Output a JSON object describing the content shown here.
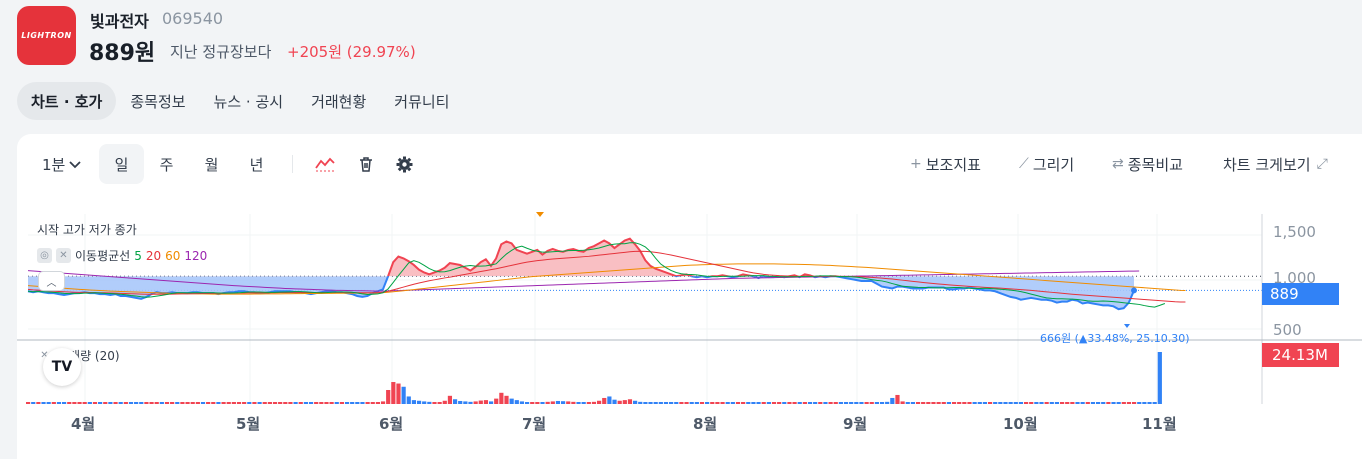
{
  "stock": {
    "logo_text": "LIGHTRON",
    "name": "빛과전자",
    "code": "069540",
    "price": "889원",
    "compare_label": "지난 정규장보다",
    "change": "+205원 (29.97%)"
  },
  "tabs": [
    {
      "label": "차트 · 호가",
      "active": true
    },
    {
      "label": "종목정보"
    },
    {
      "label": "뉴스 · 공시"
    },
    {
      "label": "거래현황"
    },
    {
      "label": "커뮤니티"
    }
  ],
  "toolbar": {
    "interval": "1분",
    "periods": [
      "일",
      "주",
      "월",
      "년"
    ],
    "indicator_label": "보조지표",
    "draw_label": "그리기",
    "compare_label": "종목비교",
    "fullscreen_label": "차트 크게보기"
  },
  "chart_labels": {
    "ohlc_legend": "시작 고가 저가 종가",
    "ma_label": "이동평균선",
    "ma_periods": [
      "5",
      "20",
      "60",
      "120"
    ],
    "volume_label": "거래량 (20)",
    "current_price_tag": "889",
    "volume_tag": "24.13M",
    "low_note": "666원 (▲33.48%, 25.10.30)"
  },
  "colors": {
    "rise": "#f04452",
    "fall": "#3182f6",
    "ma5": "#00a344",
    "ma20": "#e5333b",
    "ma60": "#f08c00",
    "ma120": "#9c27b0"
  },
  "chart_data": {
    "type": "area",
    "y_ticks": [
      "1,500",
      "1,000",
      "500"
    ],
    "x_ticks": [
      "4월",
      "5월",
      "6월",
      "7월",
      "8월",
      "9월",
      "10월",
      "11월"
    ],
    "reference_price": 1040,
    "current_price": 889,
    "price": [
      880,
      870,
      880,
      870,
      860,
      860,
      850,
      840,
      850,
      860,
      860,
      870,
      860,
      860,
      850,
      850,
      840,
      850,
      830,
      830,
      820,
      810,
      800,
      820,
      850,
      870,
      860,
      860,
      870,
      860,
      860,
      860,
      870,
      870,
      860,
      860,
      860,
      850,
      860,
      870,
      870,
      880,
      880,
      870,
      870,
      860,
      860,
      870,
      880,
      880,
      880,
      880,
      870,
      870,
      860,
      850,
      860,
      870,
      880,
      880,
      870,
      870,
      860,
      850,
      830,
      820,
      830,
      860,
      880,
      900,
      1040,
      1190,
      1250,
      1230,
      1200,
      1160,
      1110,
      1080,
      1060,
      1080,
      1100,
      1130,
      1180,
      1170,
      1160,
      1130,
      1100,
      1140,
      1190,
      1220,
      1150,
      1230,
      1380,
      1410,
      1390,
      1320,
      1300,
      1280,
      1300,
      1320,
      1270,
      1310,
      1330,
      1310,
      1300,
      1320,
      1330,
      1310,
      1300,
      1340,
      1360,
      1390,
      1420,
      1390,
      1340,
      1380,
      1420,
      1440,
      1380,
      1310,
      1210,
      1150,
      1120,
      1100,
      1080,
      1060,
      1040,
      1050,
      1060,
      1040,
      1030,
      1040,
      1030,
      1040,
      1040,
      1050,
      1040,
      1030,
      1040,
      1060,
      1050,
      1040,
      1020,
      1040,
      1030,
      1030,
      1040,
      1030,
      1040,
      1050,
      1030,
      1060,
      1050,
      1030,
      1040,
      1030,
      1040,
      1040,
      1030,
      1020,
      1010,
      1000,
      990,
      990,
      990,
      960,
      930,
      920,
      910,
      930,
      930,
      920,
      910,
      910,
      910,
      920,
      920,
      920,
      920,
      900,
      900,
      910,
      910,
      920,
      910,
      900,
      890,
      890,
      880,
      860,
      840,
      820,
      810,
      790,
      800,
      810,
      800,
      790,
      790,
      780,
      760,
      770,
      770,
      790,
      780,
      750,
      760,
      750,
      740,
      730,
      730,
      720,
      690,
      700,
      760,
      889
    ],
    "ma5": [
      880,
      875,
      877,
      875,
      872,
      868,
      865,
      858,
      855,
      855,
      856,
      860,
      862,
      864,
      862,
      858,
      856,
      852,
      848,
      843,
      835,
      830,
      822,
      816,
      820,
      829,
      836,
      846,
      858,
      864,
      864,
      863,
      864,
      865,
      865,
      865,
      864,
      862,
      860,
      860,
      862,
      865,
      869,
      872,
      873,
      872,
      870,
      868,
      869,
      871,
      872,
      874,
      876,
      876,
      874,
      870,
      866,
      864,
      866,
      870,
      872,
      872,
      872,
      870,
      862,
      852,
      846,
      848,
      853,
      864,
      906,
      974,
      1046,
      1114,
      1182,
      1206,
      1188,
      1156,
      1122,
      1098,
      1086,
      1088,
      1100,
      1118,
      1136,
      1148,
      1154,
      1148,
      1148,
      1150,
      1160,
      1172,
      1226,
      1276,
      1314,
      1346,
      1360,
      1338,
      1318,
      1306,
      1296,
      1296,
      1300,
      1304,
      1306,
      1312,
      1314,
      1314,
      1316,
      1322,
      1330,
      1340,
      1356,
      1372,
      1382,
      1386,
      1386,
      1396,
      1396,
      1380,
      1352,
      1302,
      1232,
      1170,
      1132,
      1102,
      1080,
      1066,
      1060,
      1058,
      1054,
      1046,
      1040,
      1038,
      1036,
      1038,
      1040,
      1040,
      1040,
      1040,
      1044,
      1046,
      1046,
      1046,
      1040,
      1038,
      1034,
      1034,
      1034,
      1034,
      1036,
      1038,
      1038,
      1040,
      1044,
      1044,
      1044,
      1040,
      1036,
      1036,
      1034,
      1030,
      1024,
      1014,
      1004,
      996,
      990,
      978,
      962,
      948,
      934,
      930,
      926,
      922,
      920,
      920,
      918,
      916,
      916,
      918,
      920,
      920,
      916,
      912,
      910,
      910,
      912,
      910,
      906,
      902,
      898,
      892,
      886,
      876,
      864,
      850,
      836,
      822,
      810,
      804,
      800,
      800,
      798,
      796,
      792,
      786,
      778,
      774,
      774,
      776,
      774,
      770,
      764,
      758,
      752,
      746,
      740,
      728,
      718,
      712,
      730,
      750
    ],
    "ma20": [
      900,
      895,
      892,
      888,
      885,
      882,
      878,
      875,
      872,
      870,
      869,
      868,
      867,
      866,
      865,
      864,
      862,
      860,
      858,
      856,
      854,
      852,
      850,
      849,
      848,
      848,
      848,
      849,
      850,
      851,
      852,
      853,
      854,
      855,
      856,
      857,
      858,
      858,
      859,
      860,
      861,
      862,
      862,
      863,
      863,
      864,
      864,
      865,
      865,
      866,
      866,
      866,
      866,
      867,
      867,
      867,
      867,
      867,
      868,
      868,
      868,
      868,
      868,
      867,
      866,
      865,
      864,
      864,
      865,
      870,
      880,
      895,
      910,
      925,
      940,
      955,
      968,
      980,
      992,
      1002,
      1012,
      1022,
      1030,
      1040,
      1050,
      1060,
      1070,
      1080,
      1090,
      1100,
      1110,
      1120,
      1132,
      1144,
      1156,
      1168,
      1180,
      1190,
      1198,
      1206,
      1212,
      1218,
      1224,
      1228,
      1232,
      1236,
      1240,
      1244,
      1248,
      1252,
      1258,
      1264,
      1270,
      1276,
      1282,
      1288,
      1294,
      1300,
      1304,
      1306,
      1304,
      1300,
      1294,
      1286,
      1276,
      1266,
      1254,
      1242,
      1230,
      1218,
      1206,
      1194,
      1182,
      1170,
      1158,
      1146,
      1134,
      1122,
      1110,
      1098,
      1086,
      1076,
      1068,
      1060,
      1054,
      1050,
      1046,
      1044,
      1042,
      1040,
      1040,
      1040,
      1040,
      1040,
      1040,
      1040,
      1040,
      1040,
      1039,
      1038,
      1037,
      1036,
      1034,
      1031,
      1028,
      1024,
      1020,
      1015,
      1010,
      1004,
      998,
      992,
      986,
      980,
      974,
      968,
      963,
      958,
      953,
      948,
      944,
      940,
      936,
      932,
      928,
      925,
      922,
      919,
      916,
      913,
      910,
      906,
      902,
      898,
      894,
      889,
      884,
      879,
      874,
      869,
      864,
      859,
      854,
      849,
      844,
      840,
      836,
      832,
      828,
      824,
      820,
      816,
      812,
      808,
      804,
      800,
      796,
      792,
      788,
      784,
      780,
      776,
      772,
      768,
      766,
      766
    ],
    "ma60": [
      940,
      936,
      932,
      928,
      924,
      920,
      916,
      912,
      908,
      904,
      900,
      897,
      894,
      891,
      888,
      885,
      882,
      880,
      878,
      876,
      874,
      872,
      870,
      868,
      866,
      864,
      862,
      860,
      858,
      857,
      856,
      855,
      854,
      853,
      852,
      851,
      850,
      850,
      850,
      850,
      850,
      850,
      850,
      850,
      851,
      851,
      852,
      852,
      853,
      853,
      854,
      854,
      855,
      855,
      856,
      856,
      857,
      857,
      858,
      858,
      859,
      859,
      860,
      860,
      861,
      861,
      862,
      863,
      864,
      866,
      870,
      875,
      880,
      886,
      892,
      898,
      904,
      910,
      916,
      922,
      928,
      934,
      940,
      946,
      952,
      958,
      964,
      970,
      976,
      982,
      988,
      994,
      1000,
      1006,
      1012,
      1018,
      1024,
      1030,
      1036,
      1040,
      1044,
      1048,
      1052,
      1056,
      1060,
      1064,
      1068,
      1072,
      1076,
      1080,
      1084,
      1088,
      1092,
      1096,
      1100,
      1104,
      1108,
      1112,
      1116,
      1120,
      1124,
      1128,
      1132,
      1136,
      1140,
      1144,
      1148,
      1152,
      1156,
      1158,
      1160,
      1162,
      1164,
      1166,
      1167,
      1168,
      1169,
      1170,
      1171,
      1172,
      1172,
      1172,
      1172,
      1172,
      1172,
      1171,
      1170,
      1169,
      1168,
      1167,
      1166,
      1165,
      1163,
      1161,
      1159,
      1157,
      1155,
      1152,
      1149,
      1146,
      1143,
      1140,
      1137,
      1134,
      1130,
      1126,
      1122,
      1118,
      1114,
      1110,
      1106,
      1102,
      1098,
      1094,
      1090,
      1086,
      1082,
      1078,
      1074,
      1070,
      1066,
      1062,
      1058,
      1054,
      1050,
      1046,
      1042,
      1038,
      1034,
      1030,
      1026,
      1022,
      1018,
      1014,
      1010,
      1006,
      1002,
      998,
      994,
      990,
      986,
      982,
      978,
      974,
      970,
      966,
      962,
      958,
      954,
      950,
      946,
      942,
      938,
      934,
      930,
      926,
      922,
      918,
      914,
      910,
      906,
      902,
      898,
      894,
      890,
      888
    ],
    "ma120": [
      1100,
      1096,
      1092,
      1088,
      1084,
      1080,
      1076,
      1072,
      1068,
      1064,
      1060,
      1056,
      1052,
      1048,
      1044,
      1040,
      1036,
      1032,
      1028,
      1024,
      1020,
      1016,
      1012,
      1008,
      1004,
      1000,
      996,
      992,
      988,
      984,
      980,
      976,
      972,
      968,
      964,
      960,
      956,
      952,
      948,
      944,
      940,
      937,
      934,
      931,
      928,
      925,
      922,
      919,
      916,
      913,
      910,
      908,
      906,
      904,
      902,
      900,
      898,
      896,
      894,
      892,
      890,
      889,
      888,
      887,
      886,
      885,
      884,
      883,
      882,
      882,
      883,
      885,
      887,
      889,
      891,
      893,
      895,
      897,
      899,
      901,
      903,
      905,
      907,
      909,
      911,
      913,
      915,
      917,
      919,
      921,
      923,
      925,
      927,
      929,
      931,
      933,
      935,
      937,
      939,
      941,
      943,
      945,
      947,
      949,
      951,
      953,
      955,
      957,
      959,
      961,
      963,
      965,
      967,
      969,
      971,
      973,
      975,
      977,
      979,
      981,
      983,
      985,
      987,
      989,
      991,
      993,
      995,
      997,
      999,
      1001,
      1003,
      1005,
      1007,
      1009,
      1011,
      1013,
      1015,
      1017,
      1018,
      1019,
      1020,
      1021,
      1022,
      1023,
      1024,
      1025,
      1026,
      1027,
      1028,
      1029,
      1030,
      1031,
      1032,
      1033,
      1034,
      1035,
      1036,
      1037,
      1038,
      1039,
      1040,
      1041,
      1042,
      1043,
      1044,
      1045,
      1046,
      1047,
      1048,
      1049,
      1050,
      1051,
      1052,
      1053,
      1054,
      1055,
      1056,
      1057,
      1058,
      1059,
      1060,
      1061,
      1062,
      1063,
      1064,
      1065,
      1066,
      1067,
      1068,
      1069,
      1070,
      1071,
      1072,
      1073,
      1074,
      1075,
      1076,
      1077,
      1078,
      1079,
      1080,
      1081,
      1082,
      1083,
      1084,
      1085,
      1086,
      1087,
      1088,
      1089,
      1090,
      1091,
      1092,
      1093,
      1094,
      1095,
      1096
    ],
    "volume": [
      0.5,
      0.4,
      0.3,
      0.3,
      0.4,
      0.3,
      0.3,
      0.3,
      0.3,
      0.4,
      0.3,
      0.3,
      0.3,
      0.3,
      0.3,
      0.3,
      0.3,
      0.3,
      0.3,
      0.3,
      0.3,
      0.4,
      0.3,
      0.3,
      0.3,
      0.5,
      0.3,
      0.3,
      0.3,
      0.3,
      0.3,
      0.3,
      0.3,
      0.3,
      0.3,
      0.3,
      0.3,
      0.3,
      0.3,
      0.3,
      0.3,
      0.3,
      0.3,
      0.3,
      0.3,
      0.3,
      0.3,
      0.3,
      0.3,
      0.3,
      0.3,
      0.3,
      0.3,
      0.3,
      0.3,
      0.3,
      0.3,
      0.3,
      0.3,
      0.3,
      0.3,
      0.3,
      0.3,
      0.3,
      0.3,
      0.3,
      0.4,
      0.5,
      0.8,
      1.2,
      6.5,
      10.2,
      9.5,
      8.0,
      3.5,
      1.8,
      1.5,
      1.2,
      1.0,
      0.9,
      0.8,
      1.5,
      3.8,
      2.2,
      1.4,
      1.2,
      1.0,
      1.2,
      1.6,
      1.8,
      1.2,
      2.5,
      5.2,
      3.8,
      2.5,
      1.8,
      1.2,
      0.9,
      0.8,
      0.8,
      0.9,
      1.0,
      1.2,
      1.4,
      1.3,
      1.2,
      1.0,
      0.9,
      0.8,
      0.7,
      1.0,
      1.5,
      2.8,
      3.5,
      2.0,
      1.5,
      1.8,
      2.2,
      1.5,
      1.0,
      0.9,
      0.8,
      0.7,
      0.6,
      0.5,
      0.5,
      0.4,
      0.4,
      0.4,
      0.3,
      0.3,
      0.3,
      0.3,
      0.3,
      0.4,
      0.3,
      0.3,
      0.3,
      0.4,
      0.5,
      0.4,
      0.3,
      0.3,
      0.3,
      0.3,
      0.3,
      0.3,
      0.3,
      0.3,
      0.3,
      0.3,
      0.4,
      0.3,
      0.3,
      0.3,
      0.3,
      0.3,
      0.3,
      0.3,
      0.3,
      0.3,
      0.3,
      0.3,
      0.3,
      0.4,
      0.5,
      0.6,
      1.0,
      2.8,
      4.2,
      1.2,
      0.8,
      0.6,
      0.5,
      0.5,
      0.5,
      0.4,
      0.4,
      0.4,
      0.4,
      0.4,
      0.5,
      0.4,
      0.4,
      0.4,
      0.4,
      0.4,
      0.5,
      0.4,
      0.4,
      0.4,
      0.4,
      0.5,
      0.6,
      0.8,
      0.9,
      0.7,
      0.5,
      0.6,
      0.7,
      0.6,
      0.5,
      0.6,
      0.5,
      0.5,
      0.5,
      0.6,
      0.5,
      0.5,
      0.4,
      0.4,
      0.5,
      0.6,
      0.7,
      0.6,
      0.5,
      0.5,
      0.6,
      0.8,
      0.6,
      24.13
    ]
  }
}
